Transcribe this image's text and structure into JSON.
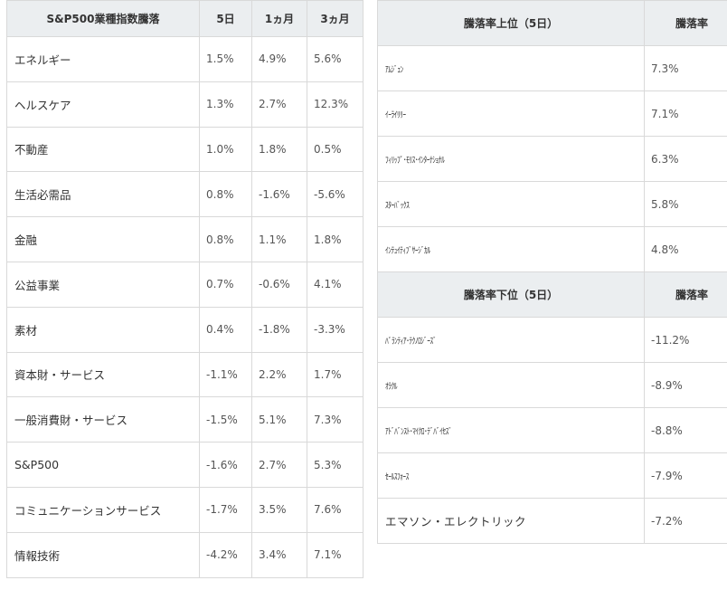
{
  "sector_table": {
    "headers": [
      "S&P500業種指数騰落",
      "5日",
      "1ヵ月",
      "3ヵ月"
    ],
    "rows": [
      {
        "name": "エネルギー",
        "d5": "1.5%",
        "m1": "4.9%",
        "m3": "5.6%"
      },
      {
        "name": "ヘルスケア",
        "d5": "1.3%",
        "m1": "2.7%",
        "m3": "12.3%"
      },
      {
        "name": "不動産",
        "d5": "1.0%",
        "m1": "1.8%",
        "m3": "0.5%"
      },
      {
        "name": "生活必需品",
        "d5": "0.8%",
        "m1": "-1.6%",
        "m3": "-5.6%"
      },
      {
        "name": "金融",
        "d5": "0.8%",
        "m1": "1.1%",
        "m3": "1.8%"
      },
      {
        "name": "公益事業",
        "d5": "0.7%",
        "m1": "-0.6%",
        "m3": "4.1%"
      },
      {
        "name": "素材",
        "d5": "0.4%",
        "m1": "-1.8%",
        "m3": "-3.3%"
      },
      {
        "name": "資本財・サービス",
        "d5": "-1.1%",
        "m1": "2.2%",
        "m3": "1.7%"
      },
      {
        "name": "一般消費財・サービス",
        "d5": "-1.5%",
        "m1": "5.1%",
        "m3": "7.3%"
      },
      {
        "name": "S&P500",
        "d5": "-1.6%",
        "m1": "2.7%",
        "m3": "5.3%"
      },
      {
        "name": "コミュニケーションサービス",
        "d5": "-1.7%",
        "m1": "3.5%",
        "m3": "7.6%"
      },
      {
        "name": "情報技術",
        "d5": "-4.2%",
        "m1": "3.4%",
        "m3": "7.1%"
      }
    ]
  },
  "top_table": {
    "headers": [
      "騰落率上位（5日）",
      "騰落率"
    ],
    "rows": [
      {
        "name": "ｱﾑｼﾞｪﾝ",
        "rate": "7.3%"
      },
      {
        "name": "ｲｰﾗｲﾘﾘｰ",
        "rate": "7.1%"
      },
      {
        "name": "ﾌｨﾘｯﾌﾟ･ﾓﾘｽ･ｲﾝﾀｰﾅｼｮﾅﾙ",
        "rate": "6.3%"
      },
      {
        "name": "ｽﾀｰﾊﾞｯｸｽ",
        "rate": "5.8%"
      },
      {
        "name": "ｲﾝﾃｭｲﾃｨﾌﾞｻｰｼﾞｶﾙ",
        "rate": "4.8%"
      }
    ]
  },
  "bottom_table": {
    "headers": [
      "騰落率下位（5日）",
      "騰落率"
    ],
    "rows": [
      {
        "name": "ﾊﾟﾗﾝﾃｨｱ･ﾃｸﾉﾛｼﾞｰｽﾞ",
        "rate": "-11.2%"
      },
      {
        "name": "ｵﾗｸﾙ",
        "rate": "-8.9%"
      },
      {
        "name": "ｱﾄﾞﾊﾞﾝｽﾄ･ﾏｲｸﾛ･ﾃﾞﾊﾞｲｾｽﾞ",
        "rate": "-8.8%"
      },
      {
        "name": "ｾｰﾙｽﾌｫｰｽ",
        "rate": "-7.9%"
      },
      {
        "name": "エマソン・エレクトリック",
        "rate": "-7.2%"
      }
    ]
  }
}
